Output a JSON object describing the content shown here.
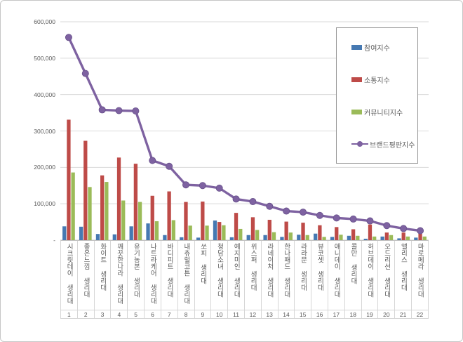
{
  "window": {
    "background": "#ffffff",
    "border_color": "#c6c6c6"
  },
  "chart_data": {
    "type": "bar",
    "subtype": "grouped-bars-with-line-overlay",
    "title": "",
    "xlabel": "",
    "ylabel": "",
    "ylim": [
      0,
      600000
    ],
    "ytick_interval": 100000,
    "ytick_labels": [
      "600,000",
      "500,000",
      "400,000",
      "300,000",
      "200,000",
      "100,000",
      "-"
    ],
    "grid": "horizontal",
    "legend_position": "upper-right-inside-box",
    "categories": [
      "시크릿데이 생리대",
      "좋은느낌 생리대",
      "화이트 생리대",
      "깨끗한나라 생리대",
      "유기농본 생리대",
      "나트라케어 생리대",
      "바디피트 생리대",
      "내츄럴코튼 생리대",
      "쏘피 생리대",
      "청담소녀 생리대",
      "예지미인 생리대",
      "위스퍼 생리대",
      "라네이처 생리대",
      "한나패드 생리대",
      "라라문 생리대",
      "뷰코셋 생리대",
      "애니데이 생리대",
      "콜만 생리대",
      "허브데이 생리대",
      "오드리선 생리대",
      "앨리스 생리대",
      "마로메라 생리대"
    ],
    "category_numbers": [
      "1",
      "2",
      "3",
      "4",
      "5",
      "6",
      "7",
      "8",
      "9",
      "10",
      "11",
      "12",
      "13",
      "14",
      "15",
      "16",
      "17",
      "18",
      "19",
      "20",
      "21",
      "22"
    ],
    "series": [
      {
        "name": "참여지수",
        "type": "bar",
        "color": "#4679B2",
        "values": [
          38000,
          37000,
          17000,
          16000,
          38000,
          46000,
          14000,
          8000,
          7000,
          54000,
          8000,
          14000,
          14000,
          9000,
          15000,
          18000,
          9000,
          12000,
          4000,
          10000,
          5000,
          7000
        ]
      },
      {
        "name": "소통지수",
        "type": "bar",
        "color": "#BE4B48",
        "values": [
          331000,
          273000,
          178000,
          227000,
          210000,
          122000,
          134000,
          105000,
          106000,
          50000,
          75000,
          63000,
          56000,
          51000,
          48000,
          41000,
          36000,
          30000,
          43000,
          21000,
          21000,
          18000
        ]
      },
      {
        "name": "커뮤니티지수",
        "type": "bar",
        "color": "#9BBB59",
        "values": [
          186000,
          146000,
          160000,
          109000,
          105000,
          52000,
          55000,
          40000,
          40000,
          41000,
          31000,
          28000,
          22000,
          21000,
          14000,
          9000,
          15000,
          12000,
          10000,
          14000,
          10000,
          10000
        ]
      },
      {
        "name": "브랜드평판지수",
        "type": "line",
        "color": "#7E62A1",
        "marker_edge_color": "#67508A",
        "values": [
          557000,
          458000,
          358000,
          356000,
          355000,
          219000,
          203000,
          152000,
          150000,
          143000,
          113000,
          106000,
          93000,
          80000,
          77000,
          68000,
          61000,
          58000,
          53000,
          40000,
          32000,
          26000
        ]
      }
    ],
    "gridline_color": "#dadada",
    "axis_line_color": "#c3c3c3",
    "tick_text_color": "#595959"
  }
}
